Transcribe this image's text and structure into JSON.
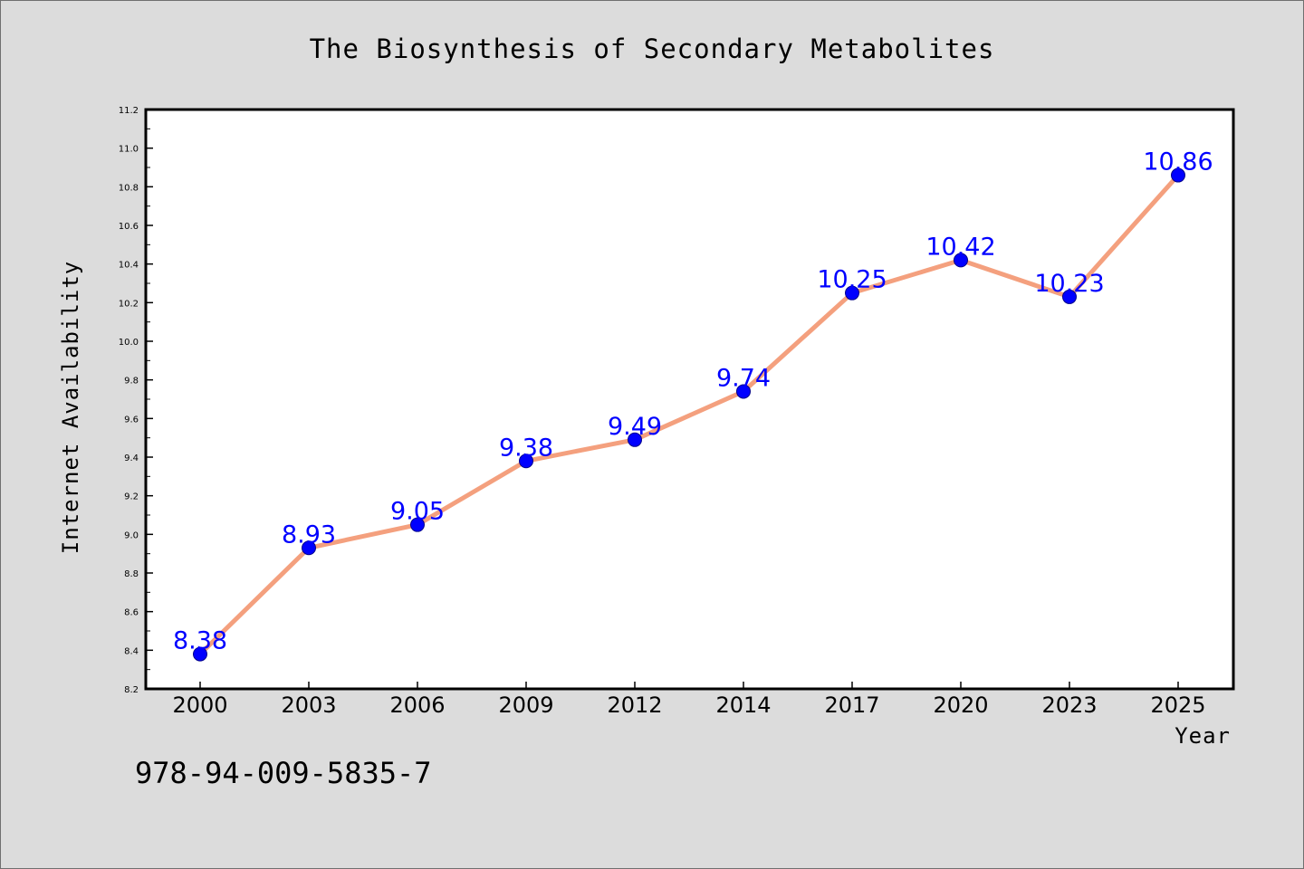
{
  "chart_data": {
    "type": "line",
    "title": "The Biosynthesis of Secondary Metabolites",
    "xlabel": "Year",
    "ylabel": "Internet Availability",
    "categories": [
      "2000",
      "2003",
      "2006",
      "2009",
      "2012",
      "2014",
      "2017",
      "2020",
      "2023",
      "2025"
    ],
    "series": [
      {
        "values": [
          8.38,
          8.93,
          9.05,
          9.38,
          9.49,
          9.74,
          10.25,
          10.42,
          10.23,
          10.86
        ]
      }
    ],
    "data_labels": [
      "8.38",
      "8.93",
      "9.05",
      "9.38",
      "9.49",
      "9.74",
      "10.25",
      "10.42",
      "10.23",
      "10.86"
    ],
    "ylim": [
      8.2,
      11.2
    ],
    "yticks": [
      "8.2",
      "8.4",
      "8.6",
      "8.8",
      "9.0",
      "9.2",
      "9.4",
      "9.6",
      "9.8",
      "10.0",
      "10.2",
      "10.4",
      "10.6",
      "10.8",
      "11.0",
      "11.2"
    ],
    "grid": false,
    "colors": {
      "line": "#f4a07e",
      "marker": "#0000ff",
      "label": "#0000ff",
      "plot_bg": "#ffffff",
      "figure_bg": "#dcdcdc"
    }
  },
  "annotation": {
    "isbn": "978-94-009-5835-7"
  }
}
